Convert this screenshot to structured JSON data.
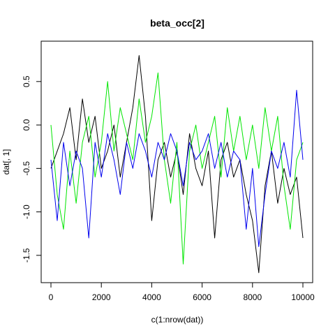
{
  "chart_data": {
    "type": "line",
    "title": "beta_occ[2]",
    "xlabel": "c(1:nrow(dat))",
    "ylabel": "dat[, 1]",
    "xlim": [
      0,
      10000
    ],
    "ylim": [
      -1.75,
      0.9
    ],
    "x_ticks": [
      0,
      2000,
      4000,
      6000,
      8000,
      10000
    ],
    "y_ticks": [
      -1.5,
      -1.0,
      -0.5,
      0.0,
      0.5
    ],
    "x_tick_labels": [
      "0",
      "2000",
      "4000",
      "6000",
      "8000",
      "10000"
    ],
    "y_tick_labels": [
      "-1.5",
      "-1.0",
      "-0.5",
      "0.0",
      "0.5"
    ],
    "grid": false,
    "legend": "none",
    "series": [
      {
        "color": "#000000",
        "x": [
          0,
          250,
          500,
          750,
          1000,
          1250,
          1500,
          1750,
          2000,
          2250,
          2500,
          2750,
          3000,
          3250,
          3500,
          3750,
          4000,
          4250,
          4500,
          4750,
          5000,
          5250,
          5500,
          5750,
          6000,
          6250,
          6500,
          6750,
          7000,
          7250,
          7500,
          7750,
          8000,
          8250,
          8500,
          8750,
          9000,
          9250,
          9500,
          9750,
          10000
        ],
        "y": [
          -0.5,
          -0.3,
          -0.1,
          0.2,
          -0.4,
          0.3,
          -0.2,
          0.1,
          -0.5,
          -0.3,
          0.0,
          -0.6,
          -0.2,
          0.2,
          0.8,
          0.1,
          -1.1,
          -0.4,
          -0.2,
          -0.6,
          -0.3,
          -0.8,
          -0.1,
          -0.5,
          -0.7,
          -0.3,
          -1.3,
          -0.4,
          -0.2,
          -0.6,
          -0.4,
          -0.8,
          -1.1,
          -1.7,
          -0.7,
          -0.3,
          -0.9,
          -0.5,
          -0.8,
          -0.6,
          -1.3
        ]
      },
      {
        "color": "#00e600",
        "x": [
          0,
          250,
          500,
          750,
          1000,
          1250,
          1500,
          1750,
          2000,
          2250,
          2500,
          2750,
          3000,
          3250,
          3500,
          3750,
          4000,
          4250,
          4500,
          4750,
          5000,
          5250,
          5500,
          5750,
          6000,
          6250,
          6500,
          6750,
          7000,
          7250,
          7500,
          7750,
          8000,
          8250,
          8500,
          8750,
          9000,
          9250,
          9500,
          9750,
          10000
        ],
        "y": [
          0.0,
          -0.8,
          -1.2,
          -0.3,
          -0.9,
          -0.2,
          0.1,
          -0.6,
          -0.2,
          0.5,
          -0.3,
          0.2,
          -0.1,
          -0.4,
          0.3,
          -0.2,
          0.1,
          0.6,
          -0.4,
          -0.9,
          -0.2,
          -1.6,
          -0.3,
          0.0,
          -0.5,
          -0.2,
          0.1,
          -0.6,
          0.2,
          -0.3,
          0.1,
          -0.4,
          0.0,
          -0.5,
          0.2,
          -0.3,
          0.1,
          -0.7,
          -1.2,
          -0.4,
          -0.2
        ]
      },
      {
        "color": "#0000ee",
        "x": [
          0,
          250,
          500,
          750,
          1000,
          1250,
          1500,
          1750,
          2000,
          2250,
          2500,
          2750,
          3000,
          3250,
          3500,
          3750,
          4000,
          4250,
          4500,
          4750,
          5000,
          5250,
          5500,
          5750,
          6000,
          6250,
          6500,
          6750,
          7000,
          7250,
          7500,
          7750,
          8000,
          8250,
          8500,
          8750,
          9000,
          9250,
          9500,
          9750,
          10000
        ],
        "y": [
          -0.4,
          -1.1,
          -0.2,
          -0.7,
          -0.3,
          -0.5,
          -1.3,
          -0.2,
          -0.6,
          -0.1,
          -0.4,
          -0.8,
          -0.2,
          -0.5,
          -0.1,
          -0.3,
          -0.6,
          -0.2,
          -0.4,
          -0.1,
          -0.3,
          -0.7,
          -0.2,
          -0.4,
          -0.3,
          -0.1,
          -0.5,
          -0.2,
          -0.6,
          -0.3,
          -0.4,
          -1.2,
          -0.5,
          -1.4,
          -0.8,
          -0.3,
          -0.5,
          -0.2,
          -0.6,
          0.4,
          -0.4
        ]
      }
    ]
  }
}
